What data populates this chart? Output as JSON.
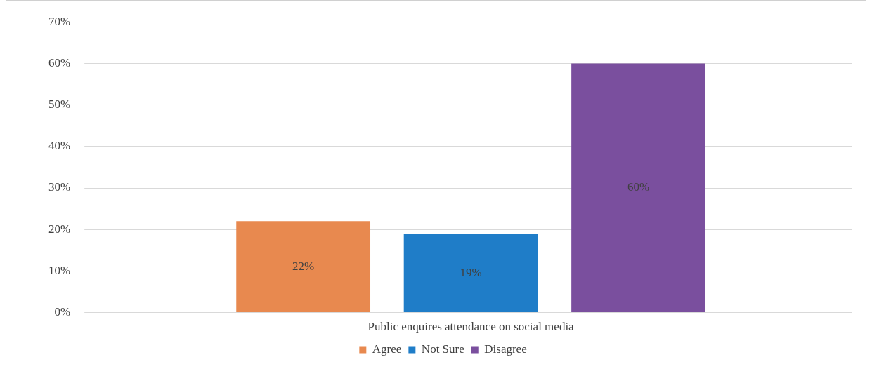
{
  "chart_data": {
    "type": "bar",
    "categories": [
      "Public enquires attendance on social media"
    ],
    "series": [
      {
        "name": "Agree",
        "color": "#e8894f",
        "values": [
          22
        ],
        "value_labels": [
          "22%"
        ]
      },
      {
        "name": "Not Sure",
        "color": "#1f7dc8",
        "values": [
          19
        ],
        "value_labels": [
          "19%"
        ]
      },
      {
        "name": "Disagree",
        "color": "#7a4f9e",
        "values": [
          60
        ],
        "value_labels": [
          "60%"
        ]
      }
    ],
    "ylim": [
      0,
      70
    ],
    "yticks": [
      {
        "value": 0,
        "label": "0%"
      },
      {
        "value": 10,
        "label": "10%"
      },
      {
        "value": 20,
        "label": "20%"
      },
      {
        "value": 30,
        "label": "30%"
      },
      {
        "value": 40,
        "label": "40%"
      },
      {
        "value": 50,
        "label": "50%"
      },
      {
        "value": 60,
        "label": "60%"
      },
      {
        "value": 70,
        "label": "70%"
      }
    ],
    "grid": "y",
    "legend": "bottom"
  }
}
